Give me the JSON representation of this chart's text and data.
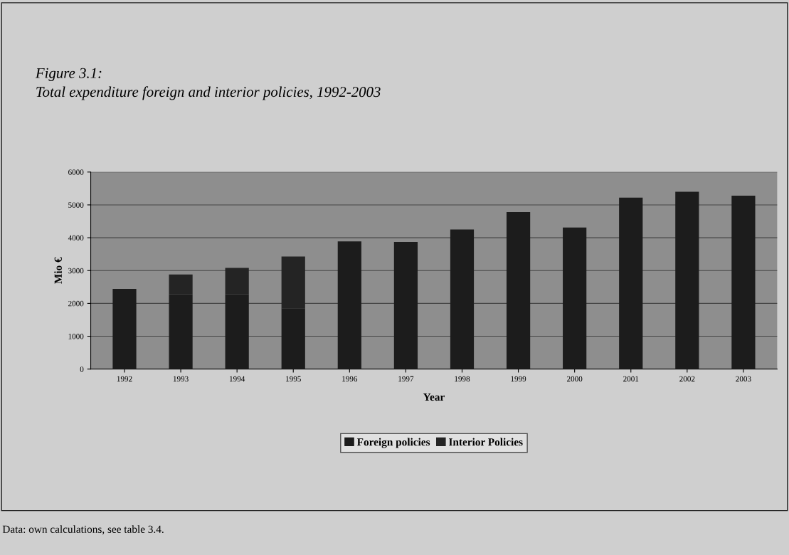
{
  "chart_data": {
    "type": "bar",
    "stacked": true,
    "title": "Figure 3.1:\nTotal expenditure foreign and interior policies, 1992-2003",
    "xlabel": "Year",
    "ylabel": "Mio €",
    "categories": [
      "1992",
      "1993",
      "1994",
      "1995",
      "1996",
      "1997",
      "1998",
      "1999",
      "2000",
      "2001",
      "2002",
      "2003"
    ],
    "series": [
      {
        "name": "Foreign policies",
        "color": "#1c1c1c",
        "values": [
          2440,
          2280,
          2280,
          1850,
          3890,
          3870,
          4250,
          4780,
          4310,
          5220,
          5400,
          5280
        ]
      },
      {
        "name": "Interior Policies",
        "color": "#242424",
        "values": [
          0,
          600,
          800,
          1580,
          0,
          0,
          0,
          0,
          0,
          0,
          0,
          0
        ]
      }
    ],
    "ylim": [
      0,
      6000
    ],
    "yticks": [
      0,
      1000,
      2000,
      3000,
      4000,
      5000,
      6000
    ],
    "grid": "y",
    "legend": "bottom",
    "annotations": [
      "Data: own calculations, see table 3.4."
    ]
  }
}
